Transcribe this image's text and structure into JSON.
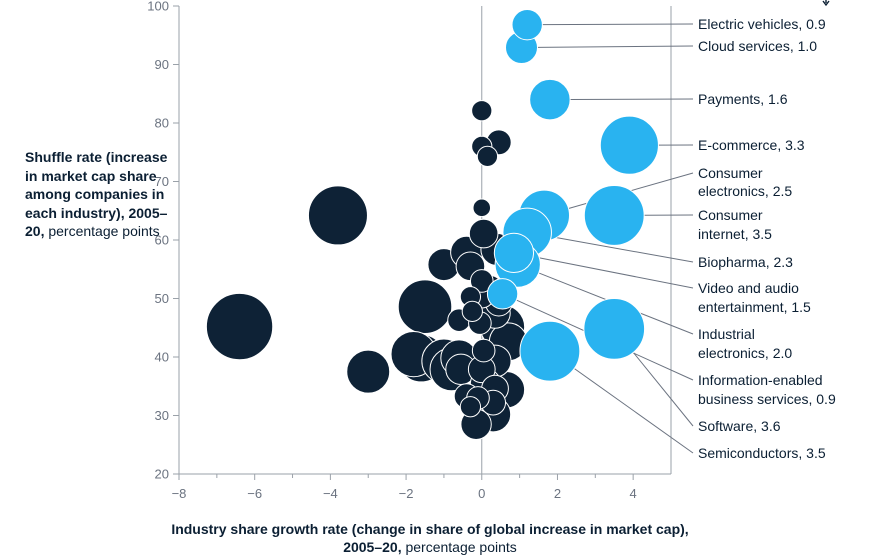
{
  "chart_data": {
    "type": "scatter",
    "subtype": "bubble",
    "xlabel_bold": "Industry share growth rate (change in share of global increase in market cap), 2005–20,",
    "xlabel_rest": "percentage points",
    "ylabel_bold": "Shuffle rate (increase in market cap share among companies in each industry), 2005–20,",
    "ylabel_rest": "percentage points",
    "xlim": [
      -8,
      5
    ],
    "ylim": [
      20,
      100
    ],
    "xticks": [
      -8,
      -6,
      -4,
      -2,
      0,
      2,
      4
    ],
    "xtick_labels": [
      "−8",
      "−6",
      "−4",
      "−2",
      "0",
      "2",
      "4"
    ],
    "yticks": [
      20,
      30,
      40,
      50,
      60,
      70,
      80,
      90,
      100
    ],
    "ytick_labels": [
      "20",
      "30",
      "40",
      "50",
      "60",
      "70",
      "80",
      "90",
      "100"
    ],
    "colors": {
      "dark": "#0e2236",
      "highlight": "#29b3f0",
      "axis": "#9aa1a9",
      "leader": "#6b7380"
    },
    "highlighted": [
      {
        "name": "Electric vehicles, 0.9",
        "x": 1.2,
        "y": 96.8,
        "size": 0.9
      },
      {
        "name": "Cloud services, 1.0",
        "x": 1.05,
        "y": 92.9,
        "size": 1.0
      },
      {
        "name": "Payments, 1.6",
        "x": 1.8,
        "y": 84.0,
        "size": 1.6
      },
      {
        "name": "E-commerce, 3.3",
        "x": 3.9,
        "y": 76.2,
        "size": 3.3
      },
      {
        "name": "Consumer electronics, 2.5",
        "x": 1.65,
        "y": 64.2,
        "size": 2.5
      },
      {
        "name": "Consumer internet, 3.5",
        "x": 3.5,
        "y": 64.2,
        "size": 3.5
      },
      {
        "name": "Biopharma, 2.3",
        "x": 1.2,
        "y": 61.3,
        "size": 2.3
      },
      {
        "name": "Video and audio entertainment, 1.5",
        "x": 0.85,
        "y": 57.8,
        "size": 1.5
      },
      {
        "name": "Industrial electronics, 2.0",
        "x": 0.95,
        "y": 55.8,
        "size": 2.0
      },
      {
        "name": "Information-enabled business services, 0.9",
        "x": 0.55,
        "y": 50.8,
        "size": 0.9
      },
      {
        "name": "Software, 3.6",
        "x": 3.5,
        "y": 44.8,
        "size": 3.6
      },
      {
        "name": "Semiconductors, 3.5",
        "x": 1.8,
        "y": 41.0,
        "size": 3.5
      }
    ],
    "others": [
      {
        "x": -6.4,
        "y": 45.2,
        "size": 4.3
      },
      {
        "x": -3.8,
        "y": 64.2,
        "size": 3.4
      },
      {
        "x": -3.0,
        "y": 37.5,
        "size": 1.8
      },
      {
        "x": -1.5,
        "y": 48.6,
        "size": 2.8
      },
      {
        "x": -1.8,
        "y": 40.5,
        "size": 2.0
      },
      {
        "x": -1.6,
        "y": 39.8,
        "size": 2.2
      },
      {
        "x": -1.0,
        "y": 39.3,
        "size": 1.9
      },
      {
        "x": -0.8,
        "y": 37.9,
        "size": 1.8
      },
      {
        "x": -0.6,
        "y": 39.8,
        "size": 1.3
      },
      {
        "x": -0.55,
        "y": 37.9,
        "size": 0.9
      },
      {
        "x": -1.0,
        "y": 55.8,
        "size": 1.0
      },
      {
        "x": -0.4,
        "y": 57.9,
        "size": 1.0
      },
      {
        "x": -0.3,
        "y": 55.5,
        "size": 0.8
      },
      {
        "x": 0.05,
        "y": 61.1,
        "size": 0.8
      },
      {
        "x": 0.4,
        "y": 58.4,
        "size": 1.0
      },
      {
        "x": 0.0,
        "y": 53.0,
        "size": 0.5
      },
      {
        "x": 0.2,
        "y": 51.5,
        "size": 0.8
      },
      {
        "x": -0.3,
        "y": 50.3,
        "size": 0.4
      },
      {
        "x": 0.0,
        "y": 50.5,
        "size": 0.6
      },
      {
        "x": 0.45,
        "y": 49.3,
        "size": 0.7
      },
      {
        "x": 0.35,
        "y": 47.5,
        "size": 0.9
      },
      {
        "x": -0.25,
        "y": 47.8,
        "size": 0.4
      },
      {
        "x": -0.6,
        "y": 46.3,
        "size": 0.5
      },
      {
        "x": -0.05,
        "y": 45.8,
        "size": 0.5
      },
      {
        "x": 0.55,
        "y": 45.1,
        "size": 1.9
      },
      {
        "x": 0.7,
        "y": 42.6,
        "size": 1.4
      },
      {
        "x": 0.05,
        "y": 41.1,
        "size": 0.5
      },
      {
        "x": 0.0,
        "y": 37.9,
        "size": 0.7
      },
      {
        "x": 0.35,
        "y": 39.3,
        "size": 1.0
      },
      {
        "x": 0.1,
        "y": 35.4,
        "size": 0.9
      },
      {
        "x": 0.65,
        "y": 34.4,
        "size": 1.3
      },
      {
        "x": 0.35,
        "y": 34.6,
        "size": 0.7
      },
      {
        "x": -0.4,
        "y": 33.3,
        "size": 0.6
      },
      {
        "x": -0.1,
        "y": 33.0,
        "size": 0.5
      },
      {
        "x": 0.3,
        "y": 32.2,
        "size": 0.6
      },
      {
        "x": -0.3,
        "y": 31.5,
        "size": 0.4
      },
      {
        "x": 0.3,
        "y": 30.2,
        "size": 1.2
      },
      {
        "x": -0.15,
        "y": 28.5,
        "size": 0.9
      },
      {
        "x": 0.0,
        "y": 82.1,
        "size": 0.4
      },
      {
        "x": 0.0,
        "y": 76.0,
        "size": 0.4
      },
      {
        "x": 0.15,
        "y": 74.3,
        "size": 0.4
      },
      {
        "x": 0.45,
        "y": 76.7,
        "size": 0.6
      },
      {
        "x": 0.0,
        "y": 65.5,
        "size": 0.3
      }
    ]
  }
}
